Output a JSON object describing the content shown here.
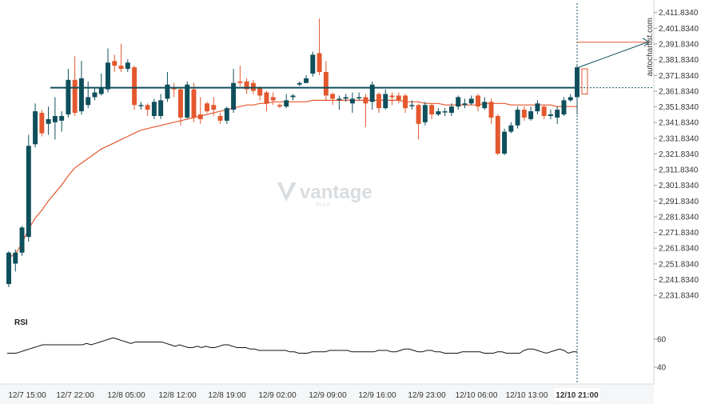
{
  "chart_data": [
    {
      "type": "candlestick",
      "y_ticks": [
        "2,411.8340",
        "2,401.8340",
        "2,391.8340",
        "2,381.8340",
        "2,371.8340",
        "2,361.8340",
        "2,351.8340",
        "2,341.8340",
        "2,331.8340",
        "2,321.8340",
        "2,311.8340",
        "2,301.8340",
        "2,291.8340",
        "2,281.8340",
        "2,271.8340",
        "2,261.8340",
        "2,251.8340",
        "2,241.8340",
        "2,231.8340"
      ],
      "x_ticks": [
        "12/7 15:00",
        "12/7 22:00",
        "12/8 05:00",
        "12/8 12:00",
        "12/8 19:00",
        "12/9 02:00",
        "12/9 09:00",
        "12/9 16:00",
        "12/9 23:00",
        "12/10 06:00",
        "12/10 13:00",
        "12/10 21:00"
      ],
      "ylim": [
        2226.8,
        2416.8
      ],
      "grid": false,
      "colors": {
        "up": "#0f4f5c",
        "down": "#e4582e",
        "ma": "#e4582e",
        "level": "#0f4f5c"
      },
      "resistance_level": 2364.0,
      "candles": [
        {
          "o": 2239,
          "c": 2259,
          "h": 2260,
          "l": 2237
        },
        {
          "o": 2252,
          "c": 2259,
          "h": 2261,
          "l": 2247
        },
        {
          "o": 2259,
          "c": 2275,
          "h": 2276,
          "l": 2257
        },
        {
          "o": 2269,
          "c": 2327,
          "h": 2334,
          "l": 2266
        },
        {
          "o": 2328,
          "c": 2349,
          "h": 2354,
          "l": 2326
        },
        {
          "o": 2348,
          "c": 2335,
          "h": 2350,
          "l": 2333
        },
        {
          "o": 2341,
          "c": 2344,
          "h": 2352,
          "l": 2334
        },
        {
          "o": 2342,
          "c": 2346,
          "h": 2358,
          "l": 2331
        },
        {
          "o": 2343,
          "c": 2346,
          "h": 2349,
          "l": 2336
        },
        {
          "o": 2347,
          "c": 2369,
          "h": 2376,
          "l": 2345
        },
        {
          "o": 2369,
          "c": 2348,
          "h": 2384,
          "l": 2346
        },
        {
          "o": 2349,
          "c": 2370,
          "h": 2381,
          "l": 2347
        },
        {
          "o": 2353,
          "c": 2358,
          "h": 2368,
          "l": 2351
        },
        {
          "o": 2358,
          "c": 2361,
          "h": 2364,
          "l": 2356
        },
        {
          "o": 2360,
          "c": 2364,
          "h": 2373,
          "l": 2359
        },
        {
          "o": 2363,
          "c": 2380,
          "h": 2389,
          "l": 2361
        },
        {
          "o": 2381,
          "c": 2378,
          "h": 2385,
          "l": 2374
        },
        {
          "o": 2378,
          "c": 2376,
          "h": 2392,
          "l": 2374
        },
        {
          "o": 2376,
          "c": 2380,
          "h": 2382,
          "l": 2374
        },
        {
          "o": 2377,
          "c": 2353,
          "h": 2378,
          "l": 2350
        },
        {
          "o": 2353,
          "c": 2353,
          "h": 2355,
          "l": 2350
        },
        {
          "o": 2353,
          "c": 2350,
          "h": 2354,
          "l": 2346
        },
        {
          "o": 2346,
          "c": 2355,
          "h": 2357,
          "l": 2344
        },
        {
          "o": 2346,
          "c": 2356,
          "h": 2360,
          "l": 2344
        },
        {
          "o": 2357,
          "c": 2366,
          "h": 2374,
          "l": 2355
        },
        {
          "o": 2364,
          "c": 2363,
          "h": 2367,
          "l": 2358
        },
        {
          "o": 2363,
          "c": 2345,
          "h": 2364,
          "l": 2340
        },
        {
          "o": 2345,
          "c": 2366,
          "h": 2368,
          "l": 2344
        },
        {
          "o": 2363,
          "c": 2345,
          "h": 2367,
          "l": 2342
        },
        {
          "o": 2347,
          "c": 2344,
          "h": 2358,
          "l": 2341
        },
        {
          "o": 2354,
          "c": 2349,
          "h": 2355,
          "l": 2348
        },
        {
          "o": 2353,
          "c": 2350,
          "h": 2358,
          "l": 2346
        },
        {
          "o": 2346,
          "c": 2343,
          "h": 2348,
          "l": 2341
        },
        {
          "o": 2343,
          "c": 2351,
          "h": 2352,
          "l": 2341
        },
        {
          "o": 2350,
          "c": 2367,
          "h": 2376,
          "l": 2348
        },
        {
          "o": 2368,
          "c": 2367,
          "h": 2378,
          "l": 2365
        },
        {
          "o": 2368,
          "c": 2363,
          "h": 2370,
          "l": 2360
        },
        {
          "o": 2367,
          "c": 2362,
          "h": 2369,
          "l": 2360
        },
        {
          "o": 2364,
          "c": 2359,
          "h": 2365,
          "l": 2356
        },
        {
          "o": 2361,
          "c": 2354,
          "h": 2362,
          "l": 2349
        },
        {
          "o": 2358,
          "c": 2356,
          "h": 2361,
          "l": 2353
        },
        {
          "o": 2353,
          "c": 2352,
          "h": 2354,
          "l": 2351
        },
        {
          "o": 2352,
          "c": 2356,
          "h": 2360,
          "l": 2351
        },
        {
          "o": 2358,
          "c": 2359,
          "h": 2360,
          "l": 2356
        },
        {
          "o": 2366,
          "c": 2367,
          "h": 2368,
          "l": 2365
        },
        {
          "o": 2367,
          "c": 2370,
          "h": 2372,
          "l": 2367
        },
        {
          "o": 2373,
          "c": 2385,
          "h": 2387,
          "l": 2371
        },
        {
          "o": 2386,
          "c": 2374,
          "h": 2408,
          "l": 2372
        },
        {
          "o": 2374,
          "c": 2359,
          "h": 2381,
          "l": 2356
        },
        {
          "o": 2360,
          "c": 2357,
          "h": 2361,
          "l": 2353
        },
        {
          "o": 2357,
          "c": 2357,
          "h": 2359,
          "l": 2350
        },
        {
          "o": 2357,
          "c": 2358,
          "h": 2360,
          "l": 2355
        },
        {
          "o": 2354,
          "c": 2357,
          "h": 2361,
          "l": 2348
        },
        {
          "o": 2358,
          "c": 2358,
          "h": 2361,
          "l": 2356
        },
        {
          "o": 2358,
          "c": 2354,
          "h": 2360,
          "l": 2339
        },
        {
          "o": 2355,
          "c": 2366,
          "h": 2368,
          "l": 2350
        },
        {
          "o": 2360,
          "c": 2351,
          "h": 2361,
          "l": 2348
        },
        {
          "o": 2351,
          "c": 2360,
          "h": 2363,
          "l": 2350
        },
        {
          "o": 2359,
          "c": 2358,
          "h": 2361,
          "l": 2353
        },
        {
          "o": 2359,
          "c": 2356,
          "h": 2361,
          "l": 2354
        },
        {
          "o": 2359,
          "c": 2351,
          "h": 2360,
          "l": 2348
        },
        {
          "o": 2353,
          "c": 2353,
          "h": 2356,
          "l": 2350
        },
        {
          "o": 2353,
          "c": 2341,
          "h": 2354,
          "l": 2331
        },
        {
          "o": 2342,
          "c": 2353,
          "h": 2355,
          "l": 2340
        },
        {
          "o": 2353,
          "c": 2347,
          "h": 2354,
          "l": 2344
        },
        {
          "o": 2347,
          "c": 2349,
          "h": 2351,
          "l": 2346
        },
        {
          "o": 2349,
          "c": 2349,
          "h": 2351,
          "l": 2346
        },
        {
          "o": 2348,
          "c": 2352,
          "h": 2354,
          "l": 2346
        },
        {
          "o": 2352,
          "c": 2358,
          "h": 2359,
          "l": 2350
        },
        {
          "o": 2353,
          "c": 2354,
          "h": 2357,
          "l": 2351
        },
        {
          "o": 2354,
          "c": 2357,
          "h": 2359,
          "l": 2353
        },
        {
          "o": 2359,
          "c": 2352,
          "h": 2360,
          "l": 2349
        },
        {
          "o": 2351,
          "c": 2355,
          "h": 2358,
          "l": 2350
        },
        {
          "o": 2355,
          "c": 2345,
          "h": 2357,
          "l": 2341
        },
        {
          "o": 2346,
          "c": 2322,
          "h": 2347,
          "l": 2321
        },
        {
          "o": 2322,
          "c": 2336,
          "h": 2338,
          "l": 2321
        },
        {
          "o": 2336,
          "c": 2340,
          "h": 2342,
          "l": 2335
        },
        {
          "o": 2340,
          "c": 2350,
          "h": 2352,
          "l": 2338
        },
        {
          "o": 2350,
          "c": 2345,
          "h": 2352,
          "l": 2343
        },
        {
          "o": 2344,
          "c": 2349,
          "h": 2352,
          "l": 2343
        },
        {
          "o": 2349,
          "c": 2354,
          "h": 2356,
          "l": 2347
        },
        {
          "o": 2352,
          "c": 2346,
          "h": 2353,
          "l": 2344
        },
        {
          "o": 2346,
          "c": 2347,
          "h": 2350,
          "l": 2344
        },
        {
          "o": 2345,
          "c": 2350,
          "h": 2352,
          "l": 2341
        },
        {
          "o": 2347,
          "c": 2356,
          "h": 2358,
          "l": 2346
        },
        {
          "o": 2356,
          "c": 2358,
          "h": 2360,
          "l": 2355
        },
        {
          "o": 2358,
          "c": 2377,
          "h": 2378,
          "l": 2347
        }
      ],
      "moving_average": [
        2256,
        2258,
        2265,
        2274,
        2281,
        2286,
        2292,
        2297,
        2302,
        2308,
        2313,
        2316,
        2319,
        2322,
        2325,
        2327,
        2329,
        2331,
        2333,
        2335,
        2337,
        2338,
        2339,
        2340,
        2341,
        2342,
        2343,
        2344,
        2345,
        2346,
        2347,
        2348,
        2349,
        2350,
        2351,
        2352,
        2353,
        2353,
        2354,
        2354,
        2355,
        2355,
        2355,
        2355,
        2355,
        2355,
        2356,
        2356,
        2356,
        2356,
        2356,
        2356,
        2356,
        2356,
        2356,
        2356,
        2356,
        2356,
        2356,
        2356,
        2355,
        2355,
        2355,
        2354,
        2354,
        2354,
        2353,
        2353,
        2353,
        2353,
        2353,
        2353,
        2354,
        2354,
        2354,
        2354,
        2353,
        2353,
        2353,
        2353,
        2353,
        2353,
        2353,
        2352,
        2352,
        2352,
        2352
      ],
      "forecast": {
        "box_low": 2360,
        "box_high": 2376,
        "target": 2393
      }
    },
    {
      "type": "line",
      "title": "RSI",
      "y_ticks": [
        "60",
        "40"
      ],
      "ylim": [
        30,
        70
      ],
      "values": [
        50,
        50,
        50,
        51,
        52,
        53,
        54,
        55,
        56,
        56,
        56,
        56,
        56,
        56,
        56,
        56,
        56,
        56,
        57,
        56,
        57,
        58,
        59,
        60,
        61,
        60,
        59,
        58,
        57,
        58,
        58,
        58,
        58,
        58,
        58,
        58,
        57,
        56,
        55,
        56,
        55,
        54,
        54,
        55,
        54,
        55,
        54,
        54,
        55,
        56,
        56,
        55,
        54,
        54,
        54,
        53,
        53,
        52,
        52,
        52,
        52,
        52,
        52,
        52,
        51,
        51,
        50,
        50,
        50,
        51,
        51,
        51,
        51,
        52,
        52,
        52,
        52,
        52,
        51,
        51,
        51,
        51,
        51,
        51,
        52,
        52,
        52,
        51,
        51,
        52,
        53,
        53,
        52,
        51,
        51,
        52,
        52,
        51,
        51,
        50,
        50,
        50,
        50,
        51,
        51,
        51,
        51,
        51,
        50,
        50,
        50,
        51,
        51,
        50,
        50,
        50,
        50,
        52,
        53,
        53,
        52,
        51,
        50,
        51,
        52,
        53,
        52,
        50,
        51,
        51
      ]
    }
  ],
  "watermark": {
    "brand": "vantage",
    "sub": "PLUS"
  },
  "sidebar_text": "autochartist.com"
}
